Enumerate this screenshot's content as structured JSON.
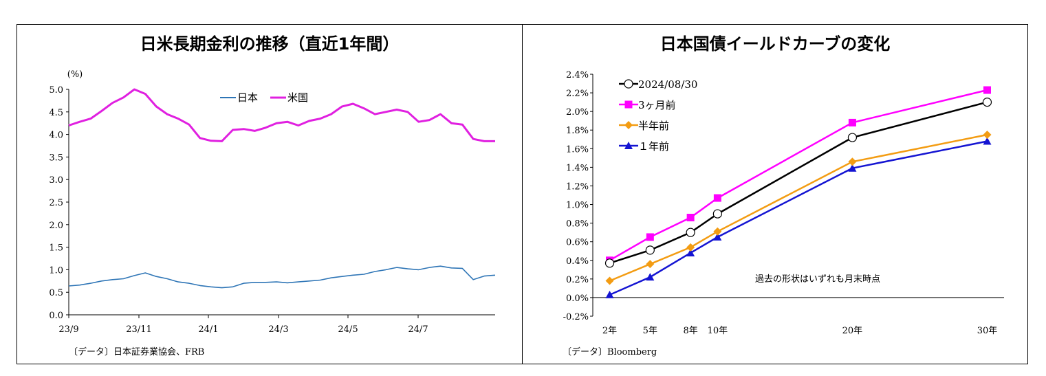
{
  "colors": {
    "japan": "#2e75b6",
    "us": "#e020e0",
    "latest": "#000000",
    "m3": "#ff00ff",
    "m6": "#f39c12",
    "y1": "#1414d2"
  },
  "chart_data": [
    {
      "type": "line",
      "title": "日米長期金利の推移（直近1年間）",
      "yunit": "(%)",
      "ylim": [
        0,
        5
      ],
      "yticks": [
        "0.0",
        "0.5",
        "1.0",
        "1.5",
        "2.0",
        "2.5",
        "3.0",
        "3.5",
        "4.0",
        "4.5",
        "5.0"
      ],
      "xticks": [
        "23/9",
        "23/11",
        "24/1",
        "24/3",
        "24/5",
        "24/7"
      ],
      "legend": [
        "日本",
        "米国"
      ],
      "legend_position": "top-center",
      "source": "〔データ〕日本証券業協会、FRB",
      "series": [
        {
          "name": "日本",
          "values": [
            0.64,
            0.66,
            0.7,
            0.75,
            0.78,
            0.8,
            0.87,
            0.93,
            0.85,
            0.8,
            0.73,
            0.7,
            0.65,
            0.62,
            0.6,
            0.62,
            0.7,
            0.72,
            0.72,
            0.73,
            0.71,
            0.73,
            0.75,
            0.77,
            0.82,
            0.85,
            0.88,
            0.9,
            0.96,
            1.0,
            1.05,
            1.02,
            1.0,
            1.05,
            1.08,
            1.04,
            1.03,
            0.78,
            0.86,
            0.88
          ]
        },
        {
          "name": "米国",
          "values": [
            4.2,
            4.28,
            4.35,
            4.52,
            4.7,
            4.82,
            5.0,
            4.9,
            4.62,
            4.45,
            4.35,
            4.22,
            3.92,
            3.86,
            3.85,
            4.1,
            4.12,
            4.08,
            4.15,
            4.25,
            4.28,
            4.2,
            4.3,
            4.35,
            4.45,
            4.62,
            4.68,
            4.58,
            4.45,
            4.5,
            4.55,
            4.5,
            4.28,
            4.32,
            4.45,
            4.25,
            4.22,
            3.9,
            3.85,
            3.85
          ]
        }
      ]
    },
    {
      "type": "line",
      "title": "日本国債イールドカーブの変化",
      "ylim": [
        -0.2,
        2.4
      ],
      "yticks": [
        "-0.2%",
        "0.0%",
        "0.2%",
        "0.4%",
        "0.6%",
        "0.8%",
        "1.0%",
        "1.2%",
        "1.4%",
        "1.6%",
        "1.8%",
        "2.0%",
        "2.2%",
        "2.4%"
      ],
      "categories": [
        "2年",
        "5年",
        "8年",
        "10年",
        "20年",
        "30年"
      ],
      "x": [
        2,
        5,
        8,
        10,
        20,
        30
      ],
      "legend_position": "top-left",
      "note": "過去の形状はいずれも月末時点",
      "source": "〔データ〕Bloomberg",
      "series": [
        {
          "name": "2024/08/30",
          "values": [
            0.37,
            0.51,
            0.7,
            0.9,
            1.72,
            2.1
          ]
        },
        {
          "name": "3ヶ月前",
          "values": [
            0.4,
            0.65,
            0.86,
            1.07,
            1.88,
            2.23
          ]
        },
        {
          "name": "半年前",
          "values": [
            0.18,
            0.36,
            0.54,
            0.71,
            1.46,
            1.75
          ]
        },
        {
          "name": "１年前",
          "values": [
            0.03,
            0.22,
            0.48,
            0.65,
            1.39,
            1.68
          ]
        }
      ]
    }
  ]
}
